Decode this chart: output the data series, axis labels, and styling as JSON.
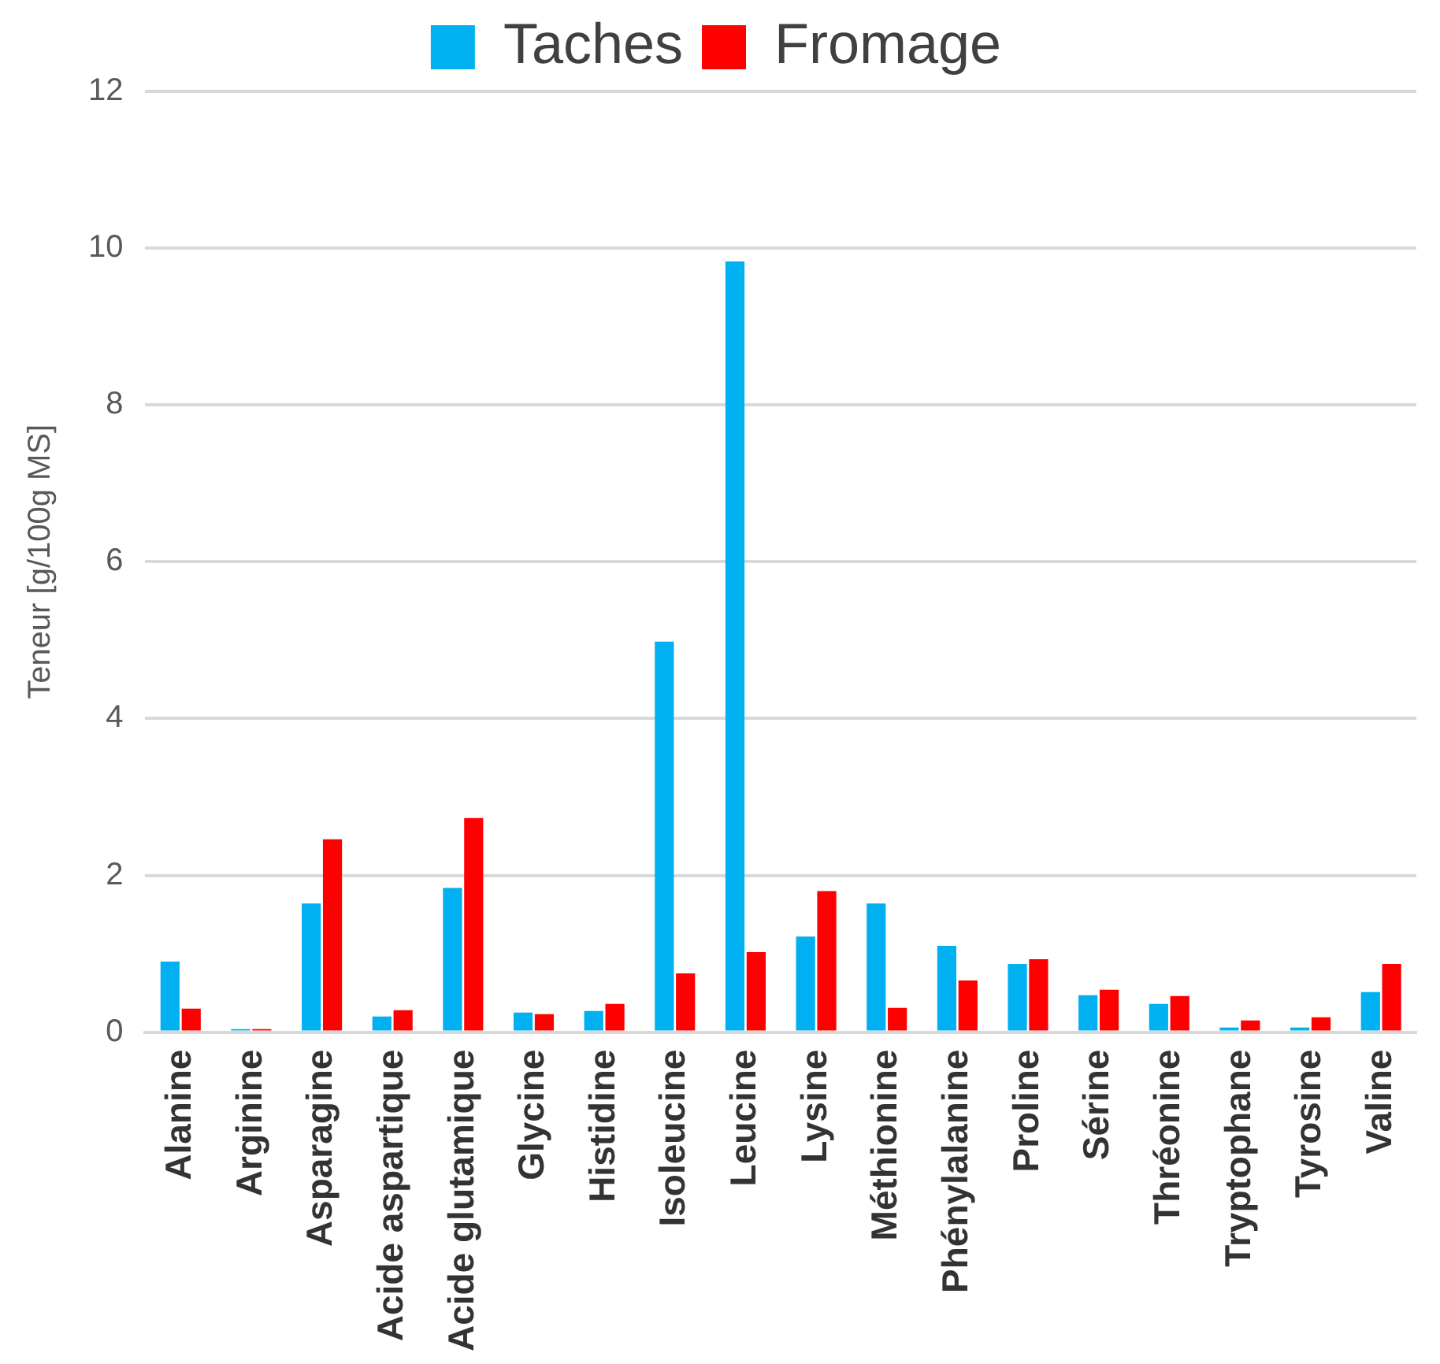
{
  "chart_data": {
    "type": "bar",
    "ylabel": "Teneur [g/100g MS]",
    "categories": [
      "Alanine",
      "Arginine",
      "Asparagine",
      "Acide aspartique",
      "Acide glutamique",
      "Glycine",
      "Histidine",
      "Isoleucine",
      "Leucine",
      "Lysine",
      "Méthionine",
      "Phénylalanine",
      "Proline",
      "Sérine",
      "Thréonine",
      "Tryptophane",
      "Tyrosine",
      "Valine"
    ],
    "series": [
      {
        "name": "Taches",
        "color": "#00b0f0",
        "values": [
          0.9,
          0.04,
          1.64,
          0.2,
          1.84,
          0.25,
          0.27,
          4.98,
          9.83,
          1.22,
          1.64,
          1.1,
          0.87,
          0.47,
          0.36,
          0.06,
          0.06,
          0.51
        ]
      },
      {
        "name": "Fromage",
        "color": "#ff0000",
        "values": [
          0.3,
          0.04,
          2.46,
          0.28,
          2.73,
          0.23,
          0.36,
          0.75,
          1.02,
          1.8,
          0.31,
          0.66,
          0.93,
          0.54,
          0.46,
          0.15,
          0.19,
          0.87
        ]
      }
    ],
    "ylim": [
      0,
      12
    ],
    "yticks": [
      0,
      2,
      4,
      6,
      8,
      10,
      12
    ],
    "grid": "y",
    "legend": "top"
  }
}
